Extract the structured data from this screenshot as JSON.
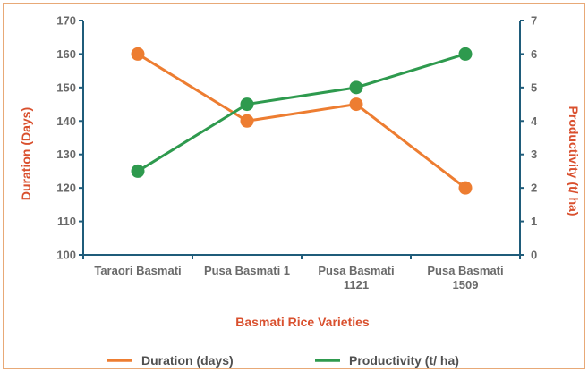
{
  "chart_data": {
    "type": "line",
    "categories": [
      [
        "Taraori Basmati"
      ],
      [
        "Pusa Basmati 1"
      ],
      [
        "Pusa Basmati",
        "1121"
      ],
      [
        "Pusa Basmati",
        "1509"
      ]
    ],
    "series": [
      {
        "name": "Duration (days)",
        "axis": "left",
        "color": "#ed7d31",
        "values": [
          160,
          140,
          145,
          120
        ]
      },
      {
        "name": "Productivity  (t/ ha)",
        "axis": "right",
        "color": "#2e9a4e",
        "values": [
          2.5,
          4.5,
          5,
          6
        ]
      }
    ],
    "xlabel": "Basmati Rice Varieties",
    "ylabel": "Duration (Days)",
    "y2label": "Productivity (t/ ha)",
    "ylim": [
      100,
      170
    ],
    "yticks": [
      100,
      110,
      120,
      130,
      140,
      150,
      160,
      170
    ],
    "y2lim": [
      0,
      7
    ],
    "y2ticks": [
      0,
      1,
      2,
      3,
      4,
      5,
      6,
      7
    ],
    "grid": false,
    "legend": "bottom",
    "axis_color": "#1f5c7a"
  }
}
